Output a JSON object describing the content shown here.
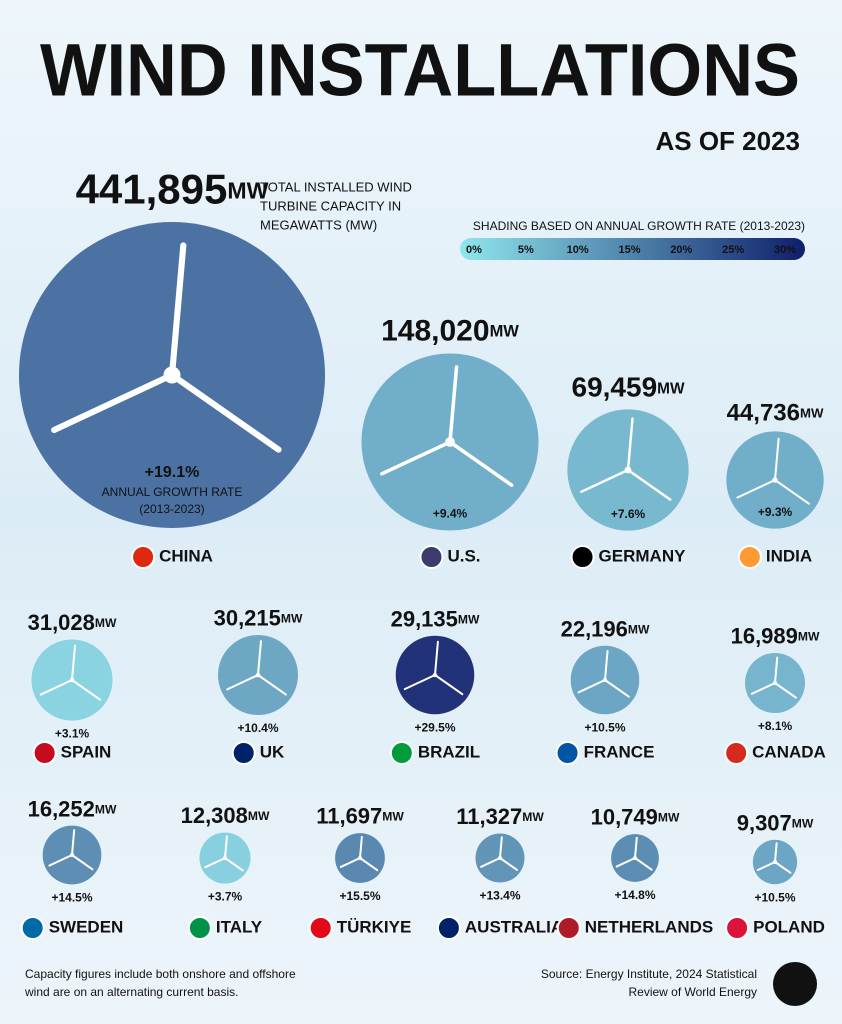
{
  "chart_data": {
    "type": "bubble",
    "title": "WIND INSTALLATIONS",
    "subtitle": "AS OF 2023",
    "size_label": [
      "TOTAL INSTALLED WIND",
      "TURBINE CAPACITY IN",
      "MEGAWATTS (MW)"
    ],
    "unit": "MW",
    "growth_label": [
      "ANNUAL GROWTH RATE",
      "(2013-2023)"
    ],
    "categories": [
      "CHINA",
      "U.S.",
      "GERMANY",
      "INDIA",
      "SPAIN",
      "UK",
      "BRAZIL",
      "FRANCE",
      "CANADA",
      "SWEDEN",
      "ITALY",
      "TÜRKIYE",
      "AUSTRALIA",
      "NETHERLANDS",
      "POLAND"
    ],
    "values": [
      441895,
      148020,
      69459,
      44736,
      31028,
      30215,
      29135,
      22196,
      16989,
      16252,
      12308,
      11697,
      11327,
      10749,
      9307
    ],
    "value_labels": [
      "441,895",
      "148,020",
      "69,459",
      "44,736",
      "31,028",
      "30,215",
      "29,135",
      "22,196",
      "16,989",
      "16,252",
      "12,308",
      "11,697",
      "11,327",
      "10,749",
      "9,307"
    ],
    "growth": [
      19.1,
      9.4,
      7.6,
      9.3,
      3.1,
      10.4,
      29.5,
      10.5,
      8.1,
      14.5,
      3.7,
      15.5,
      13.4,
      14.8,
      10.5
    ],
    "growth_labels": [
      "+19.1%",
      "+9.4%",
      "+7.6%",
      "+9.3%",
      "+3.1%",
      "+10.4%",
      "+29.5%",
      "+10.5%",
      "+8.1%",
      "+14.5%",
      "+3.7%",
      "+15.5%",
      "+13.4%",
      "+14.8%",
      "+10.5%"
    ],
    "color_scale": {
      "title": "SHADING BASED ON ANNUAL GROWTH RATE (2013-2023)",
      "ticks": [
        {
          "value": 0,
          "label": "0%"
        },
        {
          "value": 5,
          "label": "5%"
        },
        {
          "value": 10,
          "label": "10%"
        },
        {
          "value": 15,
          "label": "15%"
        },
        {
          "value": 20,
          "label": "20%"
        },
        {
          "value": 25,
          "label": "25%"
        },
        {
          "value": 30,
          "label": "30%"
        }
      ],
      "colors": [
        "#8fe6ec",
        "#0f1f6b"
      ]
    },
    "footnote": [
      "Capacity figures include both onshore and offshore",
      "wind are on an alternating current basis."
    ],
    "source": [
      "Source: Energy Institute, 2024 Statistical",
      "Review of World Energy"
    ]
  }
}
